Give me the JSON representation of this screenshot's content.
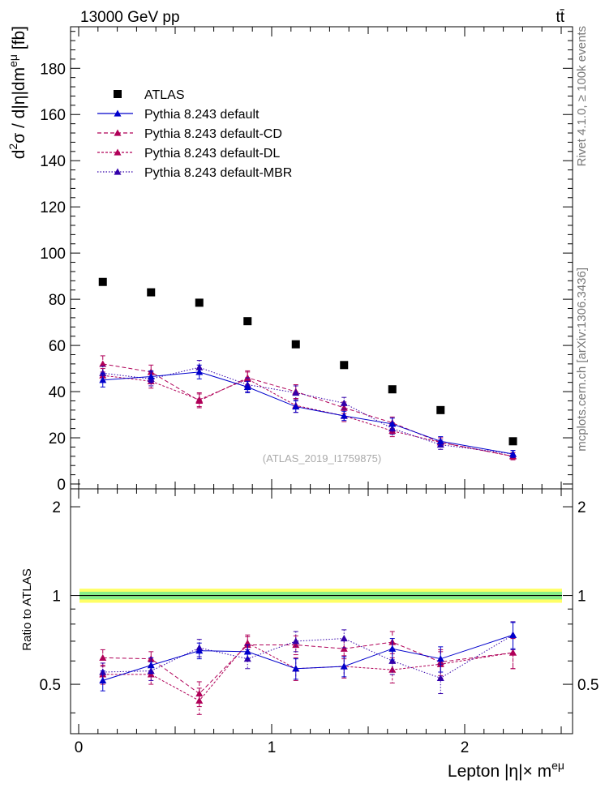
{
  "header": {
    "energy": "13000 GeV pp",
    "process": "tt̄"
  },
  "side_labels": {
    "rivet": "Rivet 4.1.0, ≥ 100k events",
    "source": "mcplots.cern.ch [arXiv:1306.3436]"
  },
  "watermark": "(ATLAS_2019_I1759875)",
  "colors": {
    "atlas": "#000000",
    "default": "#0000cc",
    "cd": "#b00058",
    "dl": "#b00058",
    "mbr": "#3300aa",
    "band_inner": "#88ee88",
    "band_outer": "#ffff66"
  },
  "chart_data": [
    {
      "type": "scatter",
      "panel": "main",
      "title": "13000 GeV pp",
      "ylabel_parts": [
        "d",
        "2",
        "σ / d|η|dm",
        "eμ",
        " [fb]"
      ],
      "xlabel": "Lepton |η|× m^eμ",
      "xlim": [
        0,
        2.5
      ],
      "ylim": [
        0,
        198
      ],
      "yticks": [
        0,
        20,
        40,
        60,
        80,
        100,
        120,
        140,
        160,
        180
      ],
      "ytick_labels": [
        "0",
        "20",
        "40",
        "60",
        "80",
        "100",
        "120",
        "140",
        "160",
        "180"
      ],
      "x": [
        0.125,
        0.375,
        0.625,
        0.875,
        1.125,
        1.375,
        1.625,
        1.875,
        2.25
      ],
      "legend": {
        "position": "top-left",
        "entries": [
          "ATLAS",
          "Pythia 8.243 default",
          "Pythia 8.243 default-CD",
          "Pythia 8.243 default-DL",
          "Pythia 8.243 default-MBR"
        ]
      },
      "series": [
        {
          "name": "ATLAS",
          "values": [
            87.5,
            83,
            78.5,
            70.5,
            60.5,
            51.5,
            41,
            32,
            18.5
          ]
        },
        {
          "name": "Pythia 8.243 default",
          "values": [
            45,
            46.5,
            48.5,
            42,
            33.5,
            29.5,
            26,
            18.5,
            13
          ],
          "err": [
            3,
            2.5,
            3,
            2.5,
            2.5,
            2,
            2.5,
            2,
            1.5
          ]
        },
        {
          "name": "Pythia 8.243 default-CD",
          "values": [
            52,
            48.5,
            36,
            46,
            40,
            33,
            26.5,
            18,
            12
          ],
          "err": [
            3.5,
            3,
            3,
            3,
            3,
            2.5,
            2.5,
            2,
            1.5
          ]
        },
        {
          "name": "Pythia 8.243 default-DL",
          "values": [
            47,
            44.5,
            36.5,
            45.5,
            34,
            29.5,
            23,
            18,
            12
          ],
          "err": [
            3,
            3,
            3,
            3,
            3,
            2.5,
            2.5,
            2,
            1.5
          ]
        },
        {
          "name": "Pythia 8.243 default-MBR",
          "values": [
            48,
            45.5,
            50.5,
            43,
            39.5,
            35,
            24,
            17,
            13
          ],
          "err": [
            3,
            3,
            3,
            3,
            3,
            2.5,
            2.5,
            2,
            1.5
          ]
        }
      ]
    },
    {
      "type": "scatter",
      "panel": "ratio",
      "ylabel": "Ratio to ATLAS",
      "xlim": [
        0,
        2.5
      ],
      "ylim": [
        0.34,
        2.3
      ],
      "yticks": [
        0.5,
        1,
        2
      ],
      "ytick_labels": [
        "0.5",
        "1",
        "2"
      ],
      "xticks": [
        0,
        1,
        2
      ],
      "xtick_labels": [
        "0",
        "1",
        "2"
      ],
      "x": [
        0.125,
        0.375,
        0.625,
        0.875,
        1.125,
        1.375,
        1.625,
        1.875,
        2.25
      ],
      "band_inner": 0.03,
      "band_outer": 0.055,
      "series": [
        {
          "name": "Pythia 8.243 default",
          "values": [
            0.515,
            0.58,
            0.65,
            0.645,
            0.565,
            0.575,
            0.66,
            0.61,
            0.735
          ],
          "err": [
            0.04,
            0.035,
            0.04,
            0.035,
            0.045,
            0.045,
            0.055,
            0.06,
            0.075
          ]
        },
        {
          "name": "Pythia 8.243 default-CD",
          "values": [
            0.615,
            0.61,
            0.465,
            0.68,
            0.68,
            0.66,
            0.695,
            0.595,
            0.64
          ],
          "err": [
            0.04,
            0.035,
            0.045,
            0.045,
            0.05,
            0.05,
            0.06,
            0.06,
            0.075
          ]
        },
        {
          "name": "Pythia 8.243 default-DL",
          "values": [
            0.54,
            0.54,
            0.44,
            0.69,
            0.565,
            0.575,
            0.56,
            0.585,
            0.64
          ],
          "err": [
            0.04,
            0.04,
            0.045,
            0.045,
            0.05,
            0.05,
            0.055,
            0.06,
            0.075
          ]
        },
        {
          "name": "Pythia 8.243 default-MBR",
          "values": [
            0.55,
            0.555,
            0.665,
            0.61,
            0.7,
            0.715,
            0.6,
            0.525,
            0.735
          ],
          "err": [
            0.04,
            0.04,
            0.045,
            0.045,
            0.055,
            0.05,
            0.06,
            0.06,
            0.08
          ]
        }
      ]
    }
  ]
}
